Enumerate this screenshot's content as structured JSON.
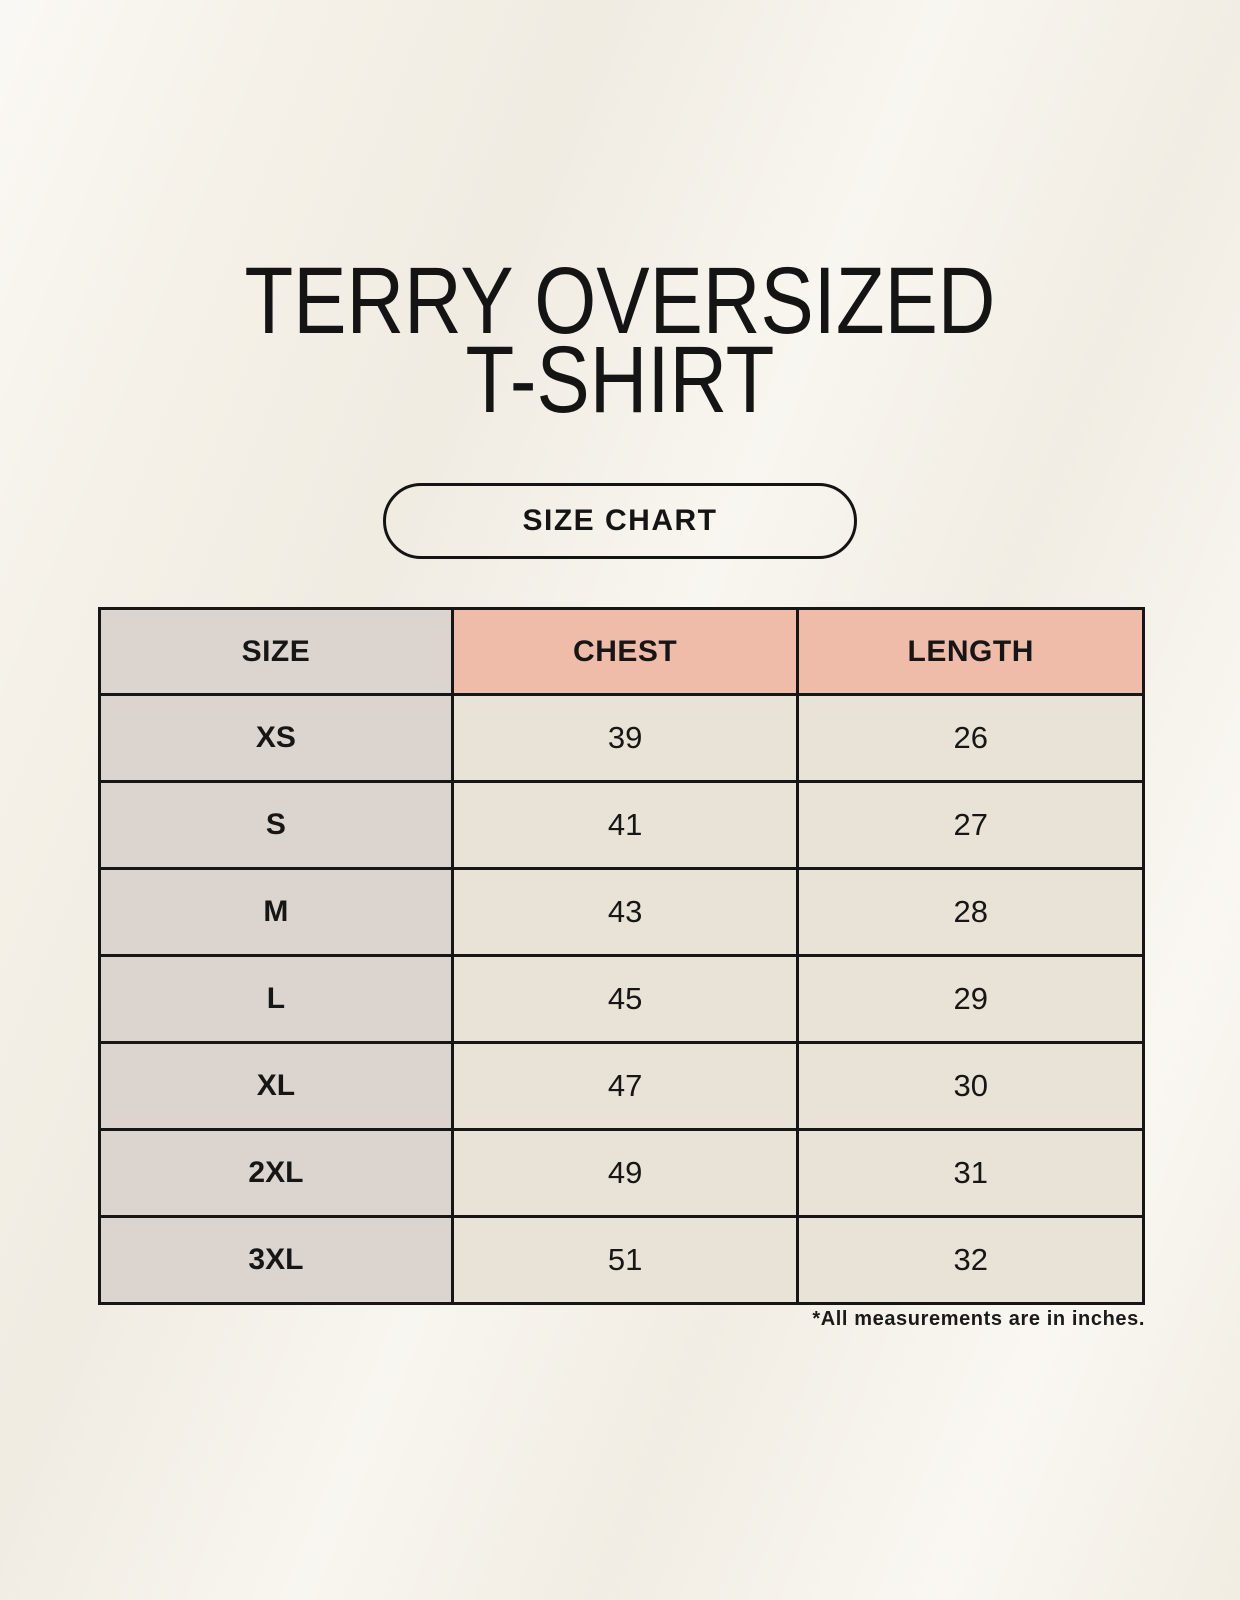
{
  "header": {
    "title_line1": "TERRY OVERSIZED",
    "title_line2": "T-SHIRT"
  },
  "button": {
    "label": "SIZE CHART"
  },
  "chart_data": {
    "type": "table",
    "title": "TERRY OVERSIZED T-SHIRT",
    "columns": [
      "SIZE",
      "CHEST",
      "LENGTH"
    ],
    "rows": [
      [
        "XS",
        "39",
        "26"
      ],
      [
        "S",
        "41",
        "27"
      ],
      [
        "M",
        "43",
        "28"
      ],
      [
        "L",
        "45",
        "29"
      ],
      [
        "XL",
        "47",
        "30"
      ],
      [
        "2XL",
        "49",
        "31"
      ],
      [
        "3XL",
        "51",
        "32"
      ]
    ],
    "units": "inches"
  },
  "footnote": {
    "text": "*All measurements are in inches."
  },
  "colors": {
    "background": "#f5f1e8",
    "gray_cell": "#dcd5cf",
    "pink_header": "#f0bcaa",
    "cream_cell": "#e9e3d7",
    "border": "#161616",
    "text": "#161616"
  }
}
